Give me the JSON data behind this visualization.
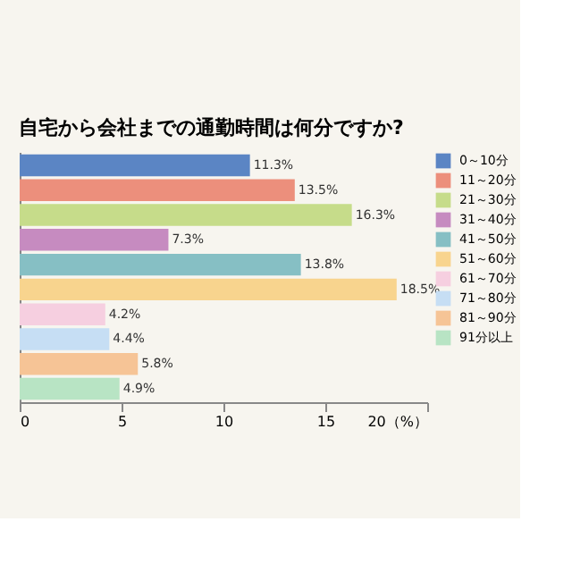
{
  "chart_data": {
    "type": "bar",
    "orientation": "horizontal",
    "title": "自宅から会社までの通勤時間は何分ですか?",
    "categories": [
      null,
      null,
      null,
      null,
      null,
      null,
      null,
      null,
      null,
      null
    ],
    "series": [
      {
        "name": "0～10分",
        "color": "#5b85c4",
        "values": [
          11.3,
          null,
          null,
          null,
          null,
          null,
          null,
          null,
          null,
          null
        ]
      },
      {
        "name": "11～20分",
        "color": "#ec8f7c",
        "values": [
          null,
          13.5,
          null,
          null,
          null,
          null,
          null,
          null,
          null,
          null
        ]
      },
      {
        "name": "21～30分",
        "color": "#c6dc8a",
        "values": [
          null,
          null,
          16.3,
          null,
          null,
          null,
          null,
          null,
          null,
          null
        ]
      },
      {
        "name": "31～40分",
        "color": "#c68bc0",
        "values": [
          null,
          null,
          null,
          7.3,
          null,
          null,
          null,
          null,
          null,
          null
        ]
      },
      {
        "name": "41～50分",
        "color": "#86bfc4",
        "values": [
          null,
          null,
          null,
          null,
          13.8,
          null,
          null,
          null,
          null,
          null
        ]
      },
      {
        "name": "51～60分",
        "color": "#f8d48e",
        "values": [
          null,
          null,
          null,
          null,
          null,
          18.5,
          null,
          null,
          null,
          null
        ]
      },
      {
        "name": "61～70分",
        "color": "#f6cfe0",
        "values": [
          null,
          null,
          null,
          null,
          null,
          null,
          4.2,
          null,
          null,
          null
        ]
      },
      {
        "name": "71～80分",
        "color": "#c6def4",
        "values": [
          null,
          null,
          null,
          null,
          null,
          null,
          null,
          4.4,
          null,
          null
        ]
      },
      {
        "name": "81～90分",
        "color": "#f6c496",
        "values": [
          null,
          null,
          null,
          null,
          null,
          null,
          null,
          null,
          5.8,
          null
        ]
      },
      {
        "name": "91分以上",
        "color": "#b8e4c4",
        "values": [
          null,
          null,
          null,
          null,
          null,
          null,
          null,
          null,
          null,
          4.9
        ]
      }
    ],
    "value_labels": [
      "11.3%",
      "13.5%",
      "16.3%",
      "7.3%",
      "13.8%",
      "18.5%",
      "4.2%",
      "4.4%",
      "5.8%",
      "4.9%"
    ],
    "xlim": [
      0,
      20
    ],
    "xticks": [
      0,
      5,
      10,
      15,
      {
        "value": 20,
        "label": "20（%）"
      }
    ],
    "tick_labels": "x",
    "legend": "right",
    "grid": false
  }
}
